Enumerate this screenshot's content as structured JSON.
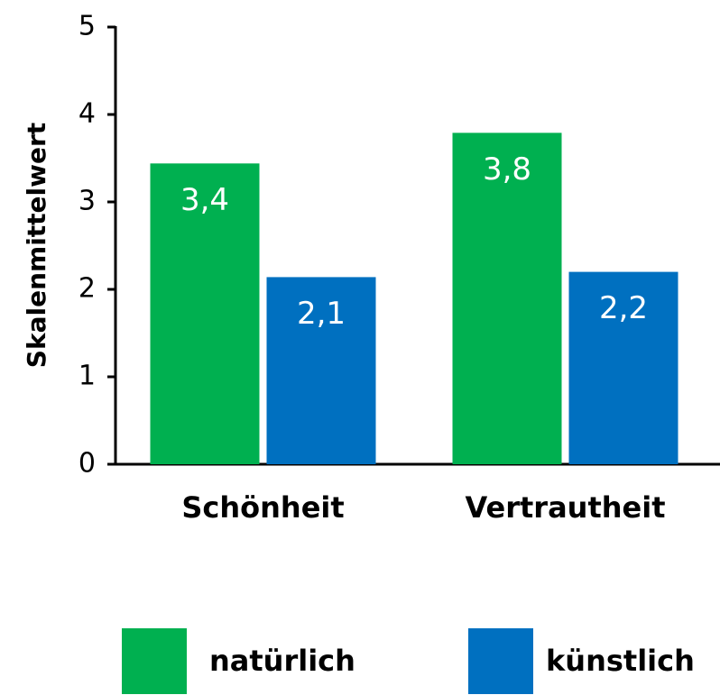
{
  "chart_data": {
    "type": "bar",
    "categories": [
      "Schönheit",
      "Vertrautheit"
    ],
    "y_label": "Skalenmittelwert",
    "series": [
      {
        "name": "natürlich",
        "color": "#00b050",
        "values": [
          3.44,
          3.79
        ],
        "value_labels": [
          "3,4",
          "3,8"
        ]
      },
      {
        "name": "künstlich",
        "color": "#0070c0",
        "values": [
          2.14,
          2.2
        ],
        "value_labels": [
          "2,1",
          "2,2"
        ]
      }
    ],
    "ylim": [
      0,
      5
    ],
    "yticks": [
      0,
      1,
      2,
      3,
      4,
      5
    ],
    "grid": false
  }
}
